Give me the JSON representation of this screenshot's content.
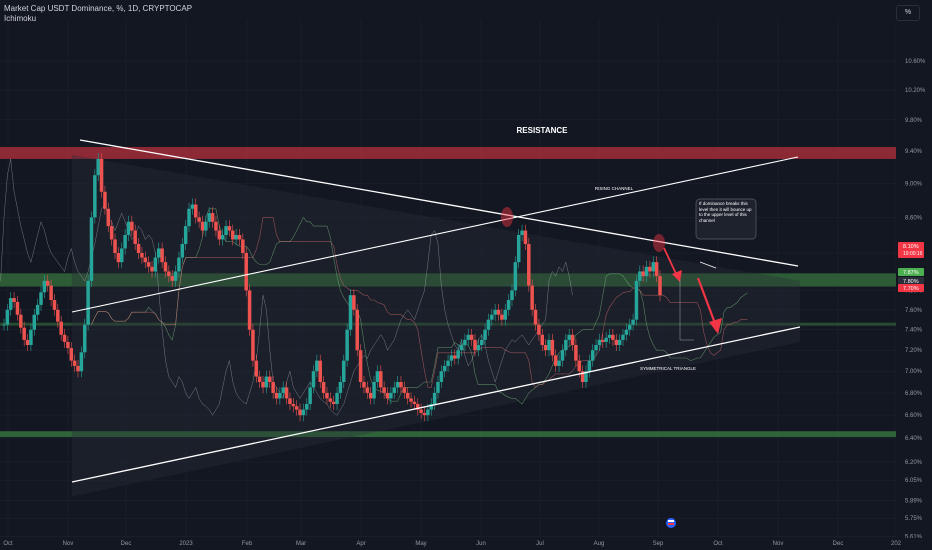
{
  "header": {
    "title": "Market Cap USDT Dominance, %, 1D, CRYPTOCAP",
    "indicator": "Ichimoku",
    "scale_button": "%"
  },
  "colors": {
    "background": "#131722",
    "up_candle": "#26a69a",
    "down_candle": "#ef5350",
    "support_zone": "#4caf50",
    "resistance_zone": "#f23645",
    "trendline": "#ffffff",
    "arrow": "#f23645"
  },
  "chart_data": {
    "type": "candlestick",
    "title": "Market Cap USDT Dominance, %, 1D, CRYPTOCAP",
    "y_scale": "log",
    "ylim": [
      5.6,
      11.2
    ],
    "x_ticks": [
      "Oct",
      "Nov",
      "Dec",
      "2023",
      "Feb",
      "Mar",
      "Apr",
      "May",
      "Jun",
      "Jul",
      "Aug",
      "Sep",
      "Oct",
      "Nov",
      "Dec",
      "202"
    ],
    "y_ticks": [
      "10.60%",
      "10.20%",
      "9.80%",
      "9.40%",
      "9.00%",
      "8.60%",
      "8.20%",
      "7.80%",
      "7.60%",
      "7.40%",
      "7.20%",
      "7.00%",
      "6.80%",
      "6.60%",
      "6.40%",
      "6.20%",
      "6.05%",
      "5.89%",
      "5.75%",
      "5.61%"
    ],
    "price_labels": [
      {
        "text": "8.10%",
        "sub": "19:00:16",
        "color": "#f23645"
      },
      {
        "text": "7.87%",
        "color": "#4caf50"
      },
      {
        "text": "7.80%",
        "color": "#2a2e39"
      },
      {
        "text": "7.70%",
        "color": "#f23645"
      }
    ],
    "annotations": [
      "RESISTANCE",
      "RISING CHANNEL",
      "SYMMETRICAL TRIANGLE",
      "If dominance breaks this level then it will bounce up to the upper level of this channel"
    ],
    "series": [
      {
        "values": [
          7.45,
          7.6,
          7.72,
          7.68,
          7.55,
          7.42,
          7.3,
          7.25,
          7.4,
          7.55,
          7.65,
          7.78,
          7.9,
          7.85,
          7.7,
          7.6,
          7.48,
          7.35,
          7.28,
          7.22,
          7.1,
          7.05,
          7.0,
          7.18,
          7.45,
          7.9,
          8.6,
          9.1,
          9.3,
          8.9,
          8.7,
          8.5,
          8.35,
          8.2,
          8.1,
          8.25,
          8.4,
          8.55,
          8.45,
          8.3,
          8.2,
          8.15,
          8.1,
          8.05,
          8.0,
          8.15,
          8.25,
          8.1,
          8.0,
          7.95,
          7.9,
          8.0,
          8.15,
          8.3,
          8.5,
          8.7,
          8.75,
          8.6,
          8.55,
          8.45,
          8.55,
          8.65,
          8.55,
          8.45,
          8.35,
          8.4,
          8.5,
          8.45,
          8.35,
          8.4,
          8.35,
          8.2,
          7.8,
          7.4,
          7.1,
          6.95,
          6.9,
          6.85,
          6.95,
          6.9,
          6.8,
          6.75,
          6.8,
          6.85,
          6.75,
          6.7,
          6.68,
          6.65,
          6.6,
          6.65,
          6.7,
          6.85,
          7.0,
          7.1,
          6.9,
          6.8,
          6.75,
          6.72,
          6.7,
          6.8,
          6.9,
          7.1,
          7.4,
          7.75,
          7.6,
          7.2,
          6.9,
          6.85,
          6.8,
          6.75,
          6.9,
          7.0,
          6.85,
          6.8,
          6.75,
          6.8,
          6.85,
          6.9,
          6.85,
          6.8,
          6.75,
          6.72,
          6.7,
          6.65,
          6.62,
          6.6,
          6.65,
          6.7,
          6.8,
          6.9,
          7.0,
          7.05,
          7.1,
          7.15,
          7.12,
          7.2,
          7.25,
          7.3,
          7.35,
          7.3,
          7.2,
          7.25,
          7.3,
          7.4,
          7.5,
          7.55,
          7.6,
          7.55,
          7.5,
          7.6,
          7.7,
          7.8,
          8.1,
          8.4,
          8.45,
          8.3,
          7.85,
          7.6,
          7.45,
          7.35,
          7.25,
          7.2,
          7.3,
          7.15,
          7.05,
          7.1,
          7.2,
          7.3,
          7.35,
          7.25,
          7.1,
          7.0,
          6.9,
          7.0,
          7.1,
          7.2,
          7.25,
          7.3,
          7.28,
          7.32,
          7.35,
          7.3,
          7.25,
          7.3,
          7.35,
          7.4,
          7.45,
          7.5,
          7.9,
          8.0,
          7.95,
          8.05,
          8.0,
          8.1,
          7.95,
          7.75
        ]
      }
    ]
  }
}
